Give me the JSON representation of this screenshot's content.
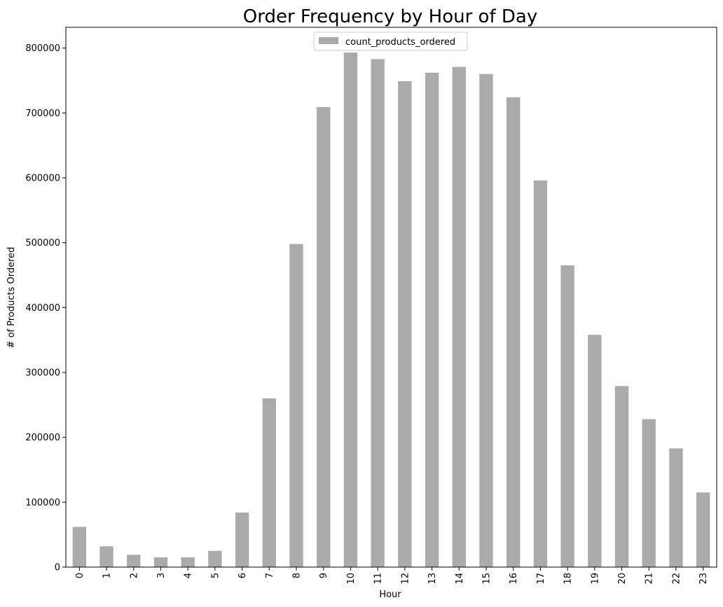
{
  "chart_data": {
    "type": "bar",
    "title": "Order Frequency by Hour of Day",
    "xlabel": "Hour",
    "ylabel": "# of Products Ordered",
    "categories": [
      "0",
      "1",
      "2",
      "3",
      "4",
      "5",
      "6",
      "7",
      "8",
      "9",
      "10",
      "11",
      "12",
      "13",
      "14",
      "15",
      "16",
      "17",
      "18",
      "19",
      "20",
      "21",
      "22",
      "23"
    ],
    "series": [
      {
        "name": "count_products_ordered",
        "color": "#aaaaaa",
        "values": [
          62000,
          32000,
          19000,
          15000,
          15000,
          25000,
          84000,
          260000,
          498000,
          709000,
          793000,
          783000,
          749000,
          762000,
          771000,
          760000,
          724000,
          596000,
          465000,
          358000,
          279000,
          228000,
          183000,
          115000
        ]
      }
    ],
    "ylim": [
      0,
      832000
    ],
    "yticks": [
      0,
      100000,
      200000,
      300000,
      400000,
      500000,
      600000,
      700000,
      800000
    ],
    "ytick_labels": [
      "0",
      "100000",
      "200000",
      "300000",
      "400000",
      "500000",
      "600000",
      "700000",
      "800000"
    ],
    "grid": false,
    "legend_position": "top-center"
  }
}
